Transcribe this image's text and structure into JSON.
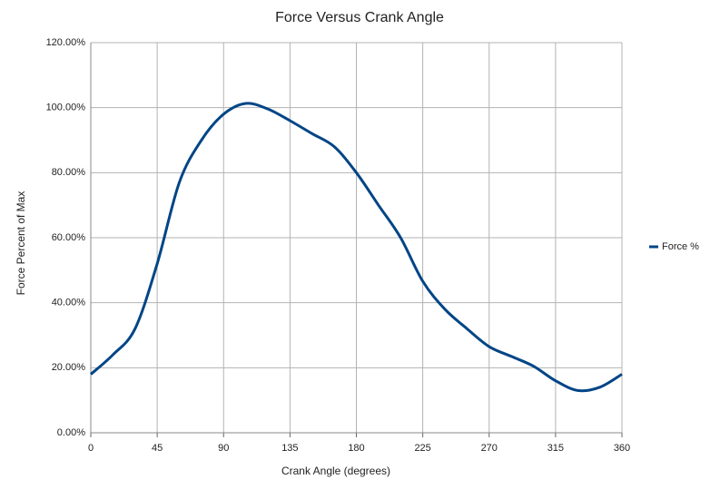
{
  "chart_data": {
    "type": "line",
    "title": "Force Versus Crank Angle",
    "x_label": "Crank Angle (degrees)",
    "y_label": "Force Percent of Max",
    "x": [
      0,
      15,
      30,
      45,
      60,
      75,
      90,
      105,
      120,
      135,
      150,
      165,
      180,
      195,
      210,
      225,
      240,
      255,
      270,
      285,
      300,
      315,
      330,
      345,
      360
    ],
    "series": [
      {
        "name": "Force %",
        "color": "#004586",
        "values": [
          18,
          24,
          32,
          52,
          77,
          90,
          98,
          101.3,
          99.6,
          96,
          92,
          88,
          80,
          70,
          60,
          46.6,
          38,
          32,
          26.5,
          23.5,
          20.5,
          16,
          13,
          14,
          18
        ]
      }
    ],
    "xlim": [
      0,
      360
    ],
    "xticks": [
      0,
      45,
      90,
      135,
      180,
      225,
      270,
      315,
      360
    ],
    "ylim": [
      0,
      120
    ],
    "yticks": [
      {
        "value": 0,
        "label": "0.00%"
      },
      {
        "value": 20,
        "label": "20.00%"
      },
      {
        "value": 40,
        "label": "40.00%"
      },
      {
        "value": 60,
        "label": "60.00%"
      },
      {
        "value": 80,
        "label": "80.00%"
      },
      {
        "value": 100,
        "label": "100.00%"
      },
      {
        "value": 120,
        "label": "120.00%"
      }
    ],
    "grid": true,
    "legend": "right"
  }
}
